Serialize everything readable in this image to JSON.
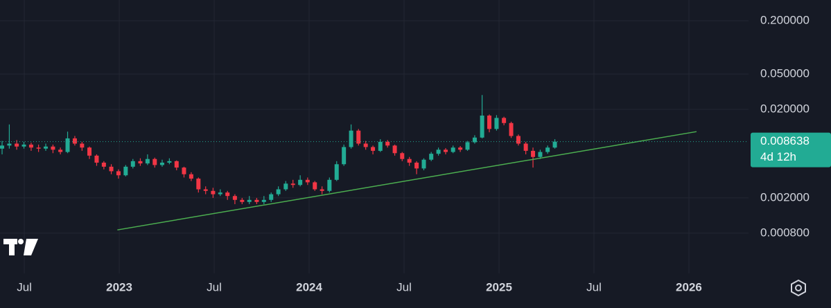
{
  "chart_data": {
    "type": "candlestick",
    "log_scale": true,
    "grid": true,
    "up_color": "#22ab94",
    "down_color": "#f23645",
    "xlim": [
      2022.372,
      2026.314
    ],
    "ylim": [
      0.000281,
      0.343
    ],
    "xticks": [
      {
        "value": 2022.5,
        "label": "Jul"
      },
      2023,
      {
        "value": 2023.5,
        "label": "Jul"
      },
      2024,
      {
        "value": 2024.5,
        "label": "Jul"
      },
      2025,
      {
        "value": 2025.5,
        "label": "Jul"
      },
      2026
    ],
    "yticks": [
      {
        "value": 0.2,
        "label": "0.200000"
      },
      {
        "value": 0.05,
        "label": "0.050000"
      },
      {
        "value": 0.02,
        "label": "0.020000"
      },
      {
        "value": 0.002,
        "label": "0.002000"
      },
      {
        "value": 0.0008,
        "label": "0.000800"
      }
    ],
    "x": [
      2022.383,
      2022.421,
      2022.46,
      2022.498,
      2022.536,
      2022.575,
      2022.613,
      2022.651,
      2022.69,
      2022.728,
      2022.766,
      2022.804,
      2022.843,
      2022.881,
      2022.919,
      2022.958,
      2022.996,
      2023.034,
      2023.072,
      2023.111,
      2023.149,
      2023.187,
      2023.226,
      2023.264,
      2023.302,
      2023.341,
      2023.379,
      2023.417,
      2023.455,
      2023.494,
      2023.532,
      2023.57,
      2023.609,
      2023.647,
      2023.685,
      2023.724,
      2023.762,
      2023.8,
      2023.838,
      2023.877,
      2023.915,
      2023.953,
      2023.992,
      2024.03,
      2024.068,
      2024.107,
      2024.145,
      2024.183,
      2024.221,
      2024.26,
      2024.298,
      2024.336,
      2024.375,
      2024.413,
      2024.451,
      2024.49,
      2024.528,
      2024.566,
      2024.604,
      2024.643,
      2024.681,
      2024.719,
      2024.758,
      2024.796,
      2024.834,
      2024.872,
      2024.911,
      2024.949,
      2024.987,
      2025.026,
      2025.064,
      2025.102,
      2025.141,
      2025.179,
      2025.217,
      2025.256,
      2025.294
    ],
    "open": [
      0.0072,
      0.0078,
      0.0082,
      0.0076,
      0.008,
      0.0074,
      0.0072,
      0.0076,
      0.007,
      0.0066,
      0.0094,
      0.0082,
      0.0074,
      0.006,
      0.005,
      0.0045,
      0.004,
      0.0036,
      0.0045,
      0.0052,
      0.0049,
      0.0055,
      0.0047,
      0.005,
      0.0052,
      0.0044,
      0.0037,
      0.0033,
      0.0025,
      0.0024,
      0.0022,
      0.0023,
      0.0021,
      0.0019,
      0.0018,
      0.0019,
      0.0018,
      0.0019,
      0.0022,
      0.0025,
      0.0029,
      0.0028,
      0.0032,
      0.003,
      0.0025,
      0.0024,
      0.0032,
      0.0048,
      0.0075,
      0.0115,
      0.0082,
      0.0075,
      0.0068,
      0.0086,
      0.0078,
      0.0064,
      0.0055,
      0.005,
      0.0043,
      0.0054,
      0.0063,
      0.007,
      0.0066,
      0.0074,
      0.007,
      0.0085,
      0.0096,
      0.017,
      0.012,
      0.016,
      0.014,
      0.01,
      0.0082,
      0.0068,
      0.0058,
      0.0066,
      0.0074
    ],
    "high": [
      0.0088,
      0.0135,
      0.009,
      0.0086,
      0.0084,
      0.008,
      0.0082,
      0.008,
      0.0074,
      0.0112,
      0.01,
      0.0086,
      0.0076,
      0.0062,
      0.0052,
      0.0048,
      0.0042,
      0.0047,
      0.0055,
      0.0056,
      0.0062,
      0.0057,
      0.0054,
      0.0056,
      0.0053,
      0.0045,
      0.0039,
      0.0034,
      0.0027,
      0.0026,
      0.0025,
      0.0024,
      0.0022,
      0.002,
      0.0021,
      0.002,
      0.0021,
      0.0023,
      0.0027,
      0.0031,
      0.0032,
      0.0036,
      0.0034,
      0.0031,
      0.0027,
      0.0034,
      0.0052,
      0.008,
      0.0135,
      0.012,
      0.0088,
      0.0078,
      0.0092,
      0.009,
      0.008,
      0.0066,
      0.0058,
      0.0052,
      0.0056,
      0.0066,
      0.0074,
      0.0073,
      0.0078,
      0.0077,
      0.0088,
      0.0102,
      0.029,
      0.0175,
      0.0172,
      0.0165,
      0.0145,
      0.0104,
      0.0086,
      0.0074,
      0.007,
      0.0078,
      0.0092
    ],
    "low": [
      0.0062,
      0.0072,
      0.007,
      0.0072,
      0.0068,
      0.0066,
      0.0068,
      0.0064,
      0.0062,
      0.0064,
      0.0078,
      0.0068,
      0.0055,
      0.0046,
      0.0042,
      0.0037,
      0.0033,
      0.0035,
      0.0043,
      0.0046,
      0.0047,
      0.0044,
      0.0045,
      0.0048,
      0.0041,
      0.0034,
      0.0031,
      0.0023,
      0.0022,
      0.002,
      0.0021,
      0.0019,
      0.0017,
      0.0017,
      0.0017,
      0.0017,
      0.0017,
      0.0018,
      0.0021,
      0.0024,
      0.0026,
      0.0027,
      0.0028,
      0.0024,
      0.0022,
      0.0023,
      0.0031,
      0.0046,
      0.0072,
      0.0078,
      0.007,
      0.0062,
      0.0066,
      0.0074,
      0.006,
      0.0052,
      0.0046,
      0.0037,
      0.0041,
      0.0052,
      0.006,
      0.0062,
      0.0064,
      0.0066,
      0.0068,
      0.0082,
      0.0094,
      0.011,
      0.0115,
      0.0132,
      0.0095,
      0.0078,
      0.0062,
      0.0044,
      0.0055,
      0.0063,
      0.0072
    ],
    "close": [
      0.0078,
      0.0082,
      0.0076,
      0.008,
      0.0074,
      0.0072,
      0.0076,
      0.007,
      0.0066,
      0.0094,
      0.0082,
      0.0074,
      0.006,
      0.005,
      0.0045,
      0.004,
      0.0036,
      0.0045,
      0.0052,
      0.0049,
      0.0055,
      0.0047,
      0.005,
      0.0052,
      0.0044,
      0.0037,
      0.0033,
      0.0025,
      0.0024,
      0.0022,
      0.0023,
      0.0021,
      0.0019,
      0.0018,
      0.0019,
      0.0018,
      0.0019,
      0.0022,
      0.0025,
      0.0029,
      0.0028,
      0.0032,
      0.003,
      0.0025,
      0.0024,
      0.0032,
      0.0048,
      0.0075,
      0.0115,
      0.0082,
      0.0075,
      0.0068,
      0.0086,
      0.0078,
      0.0064,
      0.0055,
      0.005,
      0.0043,
      0.0054,
      0.0063,
      0.007,
      0.0066,
      0.0074,
      0.007,
      0.0085,
      0.0096,
      0.017,
      0.012,
      0.016,
      0.014,
      0.01,
      0.0082,
      0.0068,
      0.0058,
      0.0066,
      0.0074,
      0.008638
    ],
    "trendline": {
      "x": [
        2022.99,
        2026.04
      ],
      "values": [
        0.00087,
        0.0112
      ],
      "color": "#4caf50"
    },
    "last_price": {
      "value": 0.008638,
      "label": "0.008638"
    },
    "countdown": "4d 12h"
  }
}
